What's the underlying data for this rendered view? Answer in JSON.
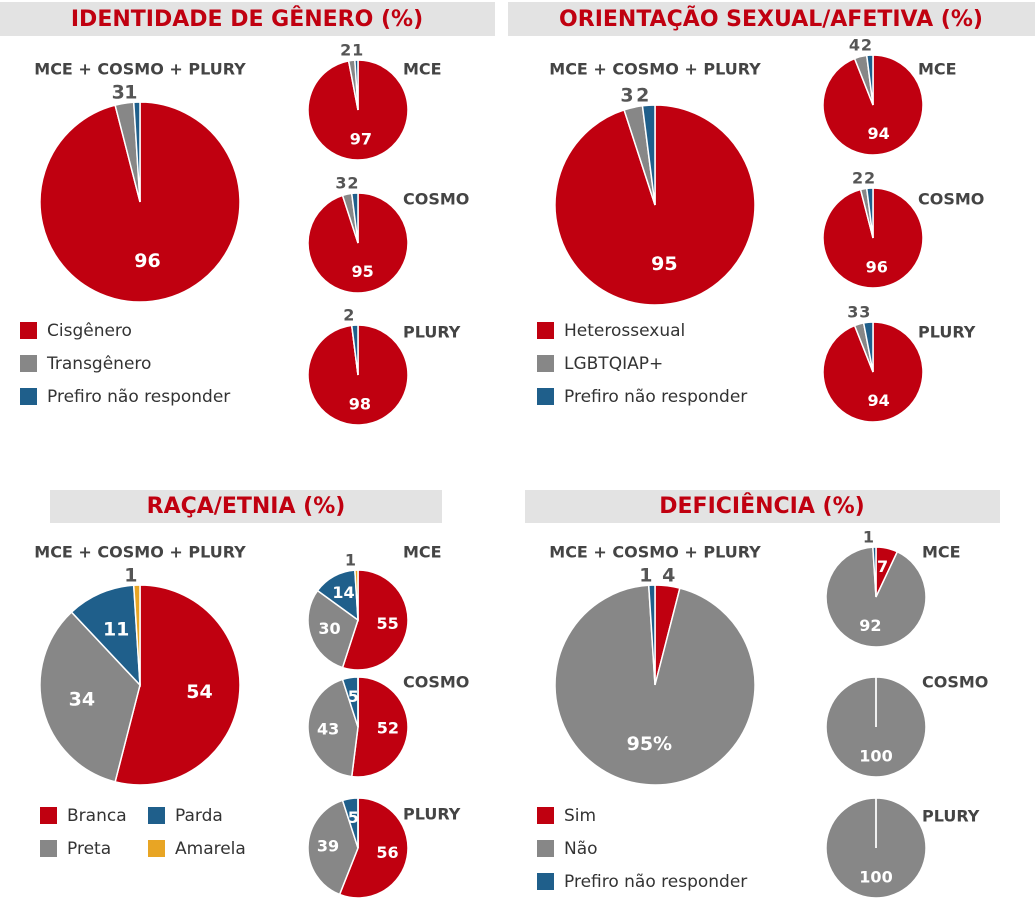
{
  "chart_data": [
    {
      "type": "pie",
      "title": "IDENTIDADE DE GÊNERO (%)",
      "categories": [
        "Cisgênero",
        "Transgênero",
        "Prefiro não responder"
      ],
      "colors": [
        "#c00010",
        "#878787",
        "#1f5f8b"
      ],
      "pies": [
        {
          "title": "MCE + COSMO + PLURY",
          "values": [
            96,
            3,
            1
          ]
        },
        {
          "title": "MCE",
          "values": [
            97,
            2,
            1
          ]
        },
        {
          "title": "COSMO",
          "values": [
            95,
            3,
            2
          ]
        },
        {
          "title": "PLURY",
          "values": [
            98,
            0,
            2
          ]
        }
      ]
    },
    {
      "type": "pie",
      "title": "ORIENTAÇÃO SEXUAL/AFETIVA (%)",
      "categories": [
        "Heterossexual",
        "LGBTQIAP+",
        "Prefiro não responder"
      ],
      "colors": [
        "#c00010",
        "#878787",
        "#1f5f8b"
      ],
      "pies": [
        {
          "title": "MCE + COSMO + PLURY",
          "values": [
            95,
            3,
            2
          ]
        },
        {
          "title": "MCE",
          "values": [
            94,
            4,
            2
          ]
        },
        {
          "title": "COSMO",
          "values": [
            96,
            2,
            2
          ]
        },
        {
          "title": "PLURY",
          "values": [
            94,
            3,
            3
          ]
        }
      ]
    },
    {
      "type": "pie",
      "title": "RAÇA/ETNIA (%)",
      "categories": [
        "Branca",
        "Preta",
        "Parda",
        "Amarela"
      ],
      "colors": [
        "#c00010",
        "#878787",
        "#1f5f8b",
        "#e8a524"
      ],
      "pies": [
        {
          "title": "MCE + COSMO + PLURY",
          "values": [
            54,
            34,
            11,
            1
          ]
        },
        {
          "title": "MCE",
          "values": [
            55,
            30,
            14,
            1
          ]
        },
        {
          "title": "COSMO",
          "values": [
            52,
            43,
            5,
            0
          ]
        },
        {
          "title": "PLURY",
          "values": [
            56,
            39,
            5,
            0
          ]
        }
      ]
    },
    {
      "type": "pie",
      "title": "DEFICIÊNCIA (%)",
      "categories": [
        "Sim",
        "Não",
        "Prefiro não responder"
      ],
      "colors": [
        "#c00010",
        "#878787",
        "#1f5f8b"
      ],
      "pies": [
        {
          "title": "MCE + COSMO + PLURY",
          "values": [
            4,
            95,
            1
          ],
          "value_labels": [
            "4",
            "95%",
            "1"
          ]
        },
        {
          "title": "MCE",
          "values": [
            7,
            92,
            1
          ]
        },
        {
          "title": "COSMO",
          "values": [
            0,
            100,
            0
          ]
        },
        {
          "title": "PLURY",
          "values": [
            0,
            100,
            0
          ]
        }
      ]
    }
  ]
}
